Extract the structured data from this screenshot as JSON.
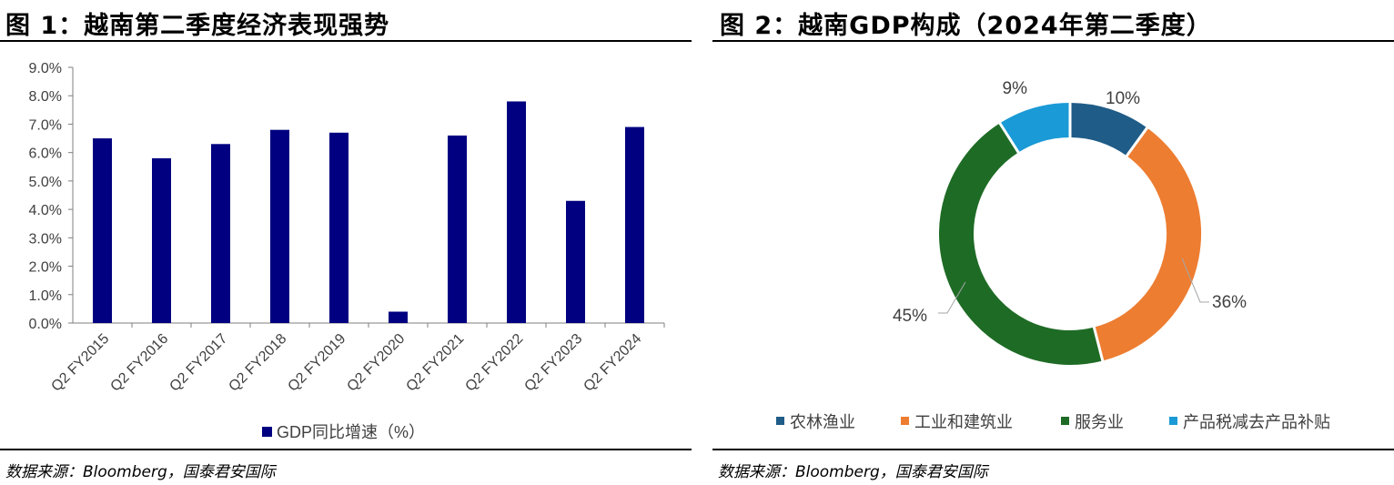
{
  "left": {
    "title": "图 1：越南第二季度经济表现强势",
    "source": "数据来源：Bloomberg，国泰君安国际"
  },
  "right": {
    "title": "图 2：越南GDP构成（2024年第二季度）",
    "source": "数据来源：Bloomberg，国泰君安国际"
  },
  "colors": {
    "bar": "#000080",
    "agri": "#1f5c87",
    "industry": "#ed7d31",
    "services": "#1e6b25",
    "taxes": "#1a9ad6"
  },
  "chart_data": [
    {
      "type": "bar",
      "title": "图 1：越南第二季度经济表现强势",
      "categories": [
        "Q2 FY2015",
        "Q2 FY2016",
        "Q2 FY2017",
        "Q2 FY2018",
        "Q2 FY2019",
        "Q2 FY2020",
        "Q2 FY2021",
        "Q2 FY2022",
        "Q2 FY2023",
        "Q2 FY2024"
      ],
      "series": [
        {
          "name": "GDP同比增速（%）",
          "values": [
            6.5,
            5.8,
            6.3,
            6.8,
            6.7,
            0.4,
            6.6,
            7.8,
            4.3,
            6.9
          ]
        }
      ],
      "ylim": [
        0,
        9
      ],
      "yticks": [
        "0.0%",
        "1.0%",
        "2.0%",
        "3.0%",
        "4.0%",
        "5.0%",
        "6.0%",
        "7.0%",
        "8.0%",
        "9.0%"
      ],
      "grid": false,
      "legend": "bottom"
    },
    {
      "type": "pie",
      "title": "图 2：越南GDP构成（2024年第二季度）",
      "labels": [
        "农林渔业",
        "工业和建筑业",
        "服务业",
        "产品税减去产品补贴"
      ],
      "values": [
        10,
        36,
        45,
        9
      ],
      "data_labels": [
        "10%",
        "36%",
        "45%",
        "9%"
      ],
      "legend": "bottom"
    }
  ]
}
